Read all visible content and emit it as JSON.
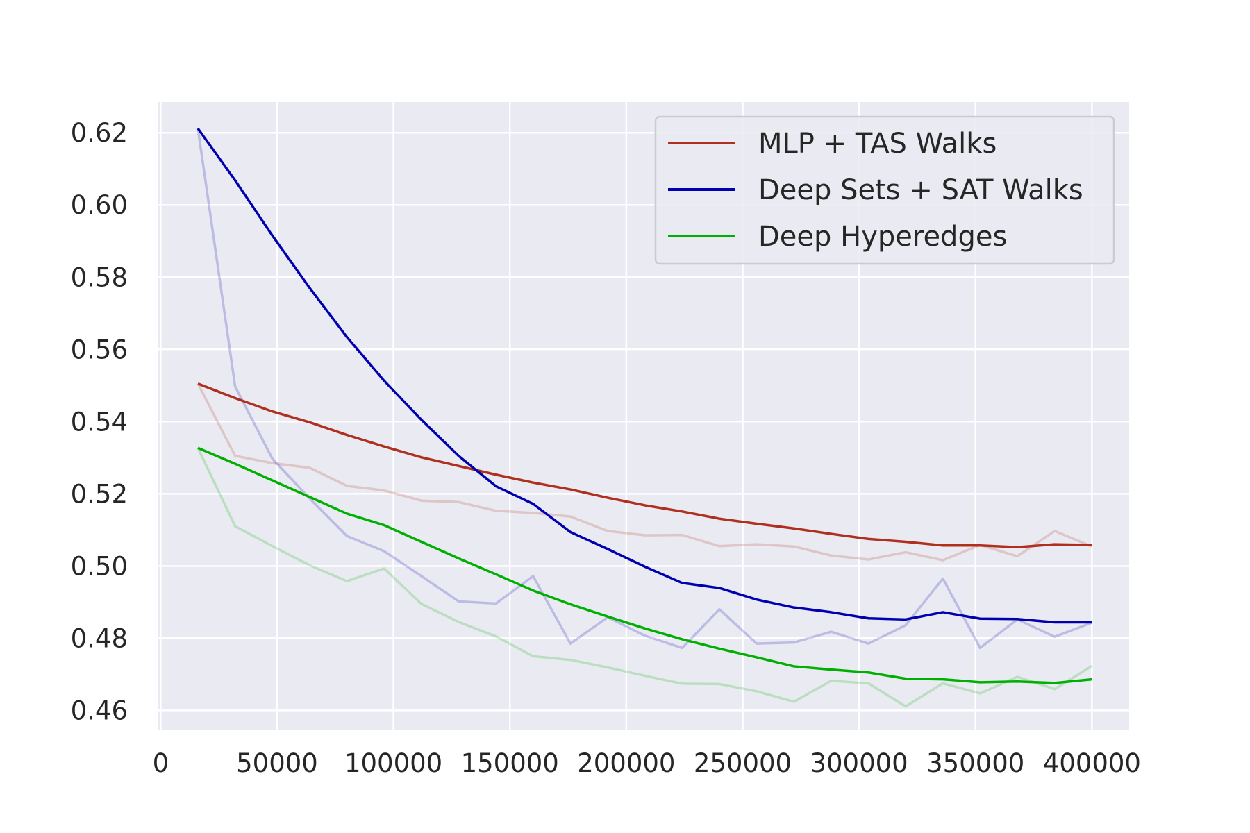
{
  "chart_data": {
    "type": "line",
    "title": "",
    "xlabel": "",
    "ylabel": "",
    "xlim": [
      -1000,
      416000
    ],
    "ylim": [
      0.4545,
      0.6285
    ],
    "x_ticks": [
      0,
      50000,
      100000,
      150000,
      200000,
      250000,
      300000,
      350000,
      400000
    ],
    "x_tick_labels": [
      "0",
      "50000",
      "100000",
      "150000",
      "200000",
      "250000",
      "300000",
      "350000",
      "400000"
    ],
    "y_ticks": [
      0.46,
      0.48,
      0.5,
      0.52,
      0.54,
      0.56,
      0.58,
      0.6,
      0.62
    ],
    "y_tick_labels": [
      "0.46",
      "0.48",
      "0.50",
      "0.52",
      "0.54",
      "0.56",
      "0.58",
      "0.60",
      "0.62"
    ],
    "grid": true,
    "background_color": "#eaeaf2",
    "grid_color": "#ffffff",
    "legend_position": "top-right",
    "x": [
      16000,
      32000,
      48000,
      64000,
      80000,
      96000,
      112000,
      128000,
      144000,
      160000,
      176000,
      192000,
      208000,
      224000,
      240000,
      256000,
      272000,
      288000,
      304000,
      320000,
      336000,
      352000,
      368000,
      384000,
      400000
    ],
    "series": [
      {
        "name": "MLP + TAS Walks",
        "color": "#b03020",
        "values": [
          0.5505,
          0.5465,
          0.5428,
          0.5398,
          0.5363,
          0.5331,
          0.5301,
          0.5277,
          0.5253,
          0.5231,
          0.5212,
          0.5189,
          0.5168,
          0.5151,
          0.5131,
          0.5117,
          0.5104,
          0.5089,
          0.5075,
          0.5067,
          0.5057,
          0.5057,
          0.5052,
          0.506,
          0.5058
        ],
        "raw_values": [
          0.5505,
          0.5305,
          0.5285,
          0.5272,
          0.5222,
          0.5209,
          0.5181,
          0.5177,
          0.5153,
          0.5147,
          0.5137,
          0.5097,
          0.5085,
          0.5086,
          0.5055,
          0.506,
          0.5054,
          0.5029,
          0.5018,
          0.5038,
          0.5016,
          0.5058,
          0.5027,
          0.5097,
          0.5054
        ]
      },
      {
        "name": "Deep Sets + SAT Walks",
        "color": "#0000b0",
        "values": [
          0.6212,
          0.6068,
          0.5915,
          0.577,
          0.5634,
          0.5513,
          0.5405,
          0.5305,
          0.5221,
          0.5172,
          0.5094,
          0.5047,
          0.4998,
          0.4953,
          0.4939,
          0.4907,
          0.4885,
          0.4872,
          0.4855,
          0.4852,
          0.4872,
          0.4854,
          0.4853,
          0.4844,
          0.4844
        ],
        "raw_values": [
          0.6212,
          0.5497,
          0.5297,
          0.5187,
          0.5083,
          0.5041,
          0.4972,
          0.4902,
          0.4896,
          0.4972,
          0.4785,
          0.4858,
          0.4807,
          0.4773,
          0.488,
          0.4785,
          0.4788,
          0.4818,
          0.4785,
          0.4836,
          0.4965,
          0.4773,
          0.4852,
          0.4804,
          0.4843
        ]
      },
      {
        "name": "Deep Hyperedges",
        "color": "#00b000",
        "values": [
          0.5327,
          0.5283,
          0.5237,
          0.5191,
          0.5145,
          0.5113,
          0.5067,
          0.5021,
          0.4977,
          0.4932,
          0.4894,
          0.486,
          0.4827,
          0.4797,
          0.4771,
          0.4747,
          0.4722,
          0.4713,
          0.4705,
          0.4688,
          0.4686,
          0.4678,
          0.468,
          0.4676,
          0.4686
        ],
        "raw_values": [
          0.5327,
          0.511,
          0.5055,
          0.5002,
          0.4958,
          0.4993,
          0.4895,
          0.4845,
          0.4805,
          0.475,
          0.474,
          0.4719,
          0.4696,
          0.4674,
          0.4673,
          0.4653,
          0.4624,
          0.4682,
          0.4675,
          0.4611,
          0.4675,
          0.4647,
          0.4693,
          0.4659,
          0.4723
        ]
      }
    ]
  }
}
